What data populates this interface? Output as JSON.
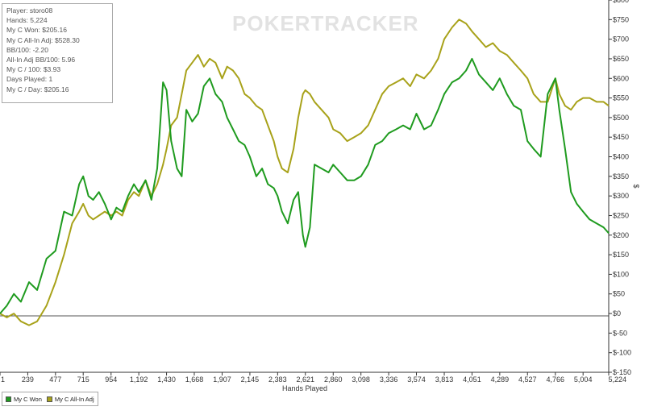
{
  "watermark": "POKERTRACKER",
  "stats": [
    "Player: storo08",
    "Hands: 5,224",
    "My C Won: $205.16",
    "My C All-In Adj: $528.30",
    "BB/100: -2.20",
    "All-In Adj BB/100: 5.96",
    "My C / 100: $3.93",
    "Days Played: 1",
    "My C / Day: $205.16"
  ],
  "chart_data": {
    "type": "line",
    "xlabel": "Hands Played",
    "ylabel": "$",
    "xlim": [
      1,
      5224
    ],
    "ylim": [
      -150,
      800
    ],
    "x_ticks": [
      1,
      239,
      477,
      715,
      954,
      1192,
      1430,
      1668,
      1907,
      2145,
      2383,
      2621,
      2860,
      3098,
      3336,
      3574,
      3813,
      4051,
      4289,
      4527,
      4766,
      5004,
      5224
    ],
    "x_tick_labels": [
      "1",
      "239",
      "477",
      "715",
      "954",
      "1,192",
      "1,430",
      "1,668",
      "1,907",
      "2,145",
      "2,383",
      "2,621",
      "2,860",
      "3,098",
      "3,336",
      "3,574",
      "3,813",
      "4,051",
      "4,289",
      "4,527",
      "4,766",
      "5,004",
      "5,224"
    ],
    "y_ticks": [
      -150,
      -100,
      -50,
      0,
      50,
      100,
      150,
      200,
      250,
      300,
      350,
      400,
      450,
      500,
      550,
      600,
      650,
      700,
      750,
      800
    ],
    "y_tick_labels": [
      "$-150",
      "$-100",
      "$-50",
      "$0",
      "$50",
      "$100",
      "$150",
      "$200",
      "$250",
      "$300",
      "$350",
      "$400",
      "$450",
      "$500",
      "$550",
      "$600",
      "$650",
      "$700",
      "$750",
      "$800"
    ],
    "grid": false,
    "legend_position": "bottom-left",
    "series": [
      {
        "name": "My C Won",
        "color": "#1f9b1f",
        "x": [
          1,
          60,
          120,
          180,
          250,
          320,
          400,
          477,
          550,
          620,
          680,
          715,
          760,
          800,
          850,
          900,
          954,
          1000,
          1050,
          1100,
          1150,
          1192,
          1250,
          1300,
          1350,
          1400,
          1430,
          1470,
          1520,
          1560,
          1600,
          1650,
          1700,
          1750,
          1800,
          1850,
          1907,
          1950,
          2000,
          2050,
          2100,
          2145,
          2200,
          2250,
          2300,
          2350,
          2383,
          2420,
          2470,
          2520,
          2560,
          2600,
          2621,
          2660,
          2700,
          2760,
          2820,
          2860,
          2920,
          2980,
          3040,
          3098,
          3160,
          3220,
          3280,
          3336,
          3400,
          3460,
          3520,
          3574,
          3640,
          3700,
          3760,
          3813,
          3880,
          3940,
          4000,
          4051,
          4110,
          4170,
          4230,
          4289,
          4350,
          4410,
          4470,
          4527,
          4580,
          4640,
          4700,
          4766,
          4800,
          4850,
          4900,
          4950,
          5004,
          5060,
          5120,
          5180,
          5224
        ],
        "values": [
          0,
          20,
          50,
          30,
          80,
          60,
          140,
          160,
          260,
          250,
          330,
          350,
          300,
          290,
          310,
          280,
          240,
          270,
          260,
          300,
          330,
          310,
          340,
          290,
          370,
          590,
          570,
          440,
          370,
          350,
          520,
          490,
          510,
          580,
          600,
          560,
          540,
          500,
          470,
          440,
          430,
          400,
          350,
          370,
          330,
          320,
          300,
          260,
          230,
          290,
          310,
          200,
          170,
          220,
          380,
          370,
          360,
          380,
          360,
          340,
          340,
          350,
          380,
          430,
          440,
          460,
          470,
          480,
          470,
          510,
          470,
          480,
          520,
          560,
          590,
          600,
          620,
          650,
          610,
          590,
          570,
          600,
          560,
          530,
          520,
          440,
          420,
          400,
          560,
          600,
          520,
          420,
          310,
          280,
          260,
          240,
          230,
          220,
          205
        ]
      },
      {
        "name": "My C All-In Adj",
        "color": "#a8a21a",
        "x": [
          1,
          60,
          120,
          180,
          250,
          320,
          400,
          477,
          550,
          620,
          680,
          715,
          760,
          800,
          850,
          900,
          954,
          1000,
          1050,
          1100,
          1150,
          1192,
          1250,
          1300,
          1350,
          1400,
          1430,
          1470,
          1520,
          1560,
          1600,
          1650,
          1700,
          1750,
          1800,
          1850,
          1907,
          1950,
          2000,
          2050,
          2100,
          2145,
          2200,
          2250,
          2300,
          2350,
          2383,
          2420,
          2470,
          2520,
          2560,
          2600,
          2621,
          2660,
          2700,
          2760,
          2820,
          2860,
          2920,
          2980,
          3040,
          3098,
          3160,
          3220,
          3280,
          3336,
          3400,
          3460,
          3520,
          3574,
          3640,
          3700,
          3760,
          3813,
          3880,
          3940,
          4000,
          4051,
          4110,
          4170,
          4230,
          4289,
          4350,
          4410,
          4470,
          4527,
          4580,
          4640,
          4700,
          4766,
          4800,
          4850,
          4900,
          4950,
          5004,
          5060,
          5120,
          5180,
          5224
        ],
        "values": [
          0,
          -10,
          0,
          -20,
          -30,
          -20,
          20,
          80,
          150,
          230,
          260,
          280,
          250,
          240,
          250,
          260,
          250,
          260,
          250,
          290,
          310,
          300,
          340,
          300,
          330,
          380,
          420,
          480,
          500,
          560,
          620,
          640,
          660,
          630,
          650,
          640,
          600,
          630,
          620,
          600,
          560,
          550,
          530,
          520,
          480,
          440,
          400,
          370,
          360,
          420,
          500,
          560,
          570,
          560,
          540,
          520,
          500,
          470,
          460,
          440,
          450,
          460,
          480,
          520,
          560,
          580,
          590,
          600,
          580,
          610,
          600,
          620,
          650,
          700,
          730,
          750,
          740,
          720,
          700,
          680,
          690,
          670,
          660,
          640,
          620,
          600,
          560,
          540,
          540,
          600,
          560,
          530,
          520,
          540,
          550,
          550,
          540,
          540,
          530
        ]
      }
    ]
  }
}
